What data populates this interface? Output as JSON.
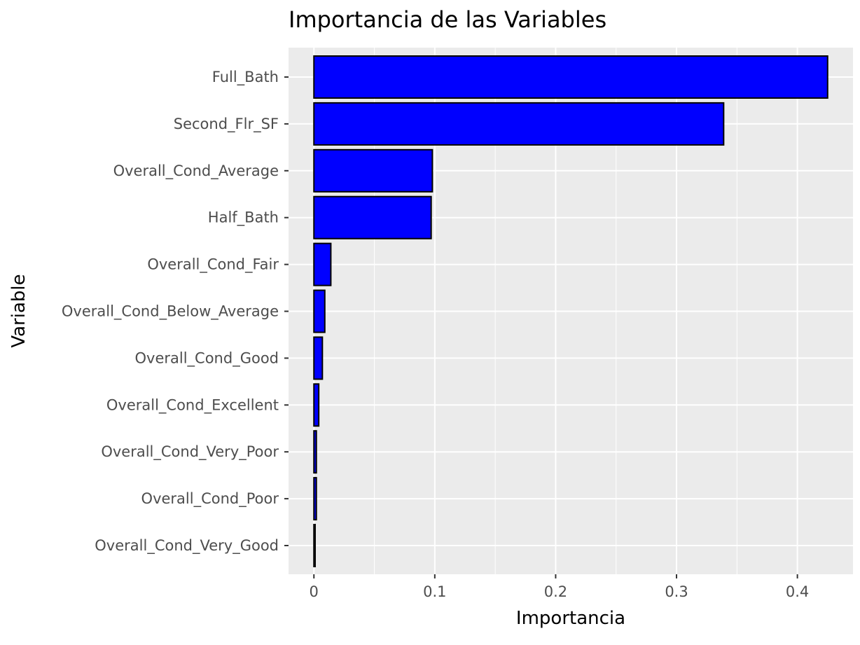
{
  "chart_data": {
    "type": "bar",
    "orientation": "horizontal",
    "title": "Importancia de las Variables",
    "xlabel": "Importancia",
    "ylabel": "Variable",
    "categories": [
      "Full_Bath",
      "Second_Flr_SF",
      "Overall_Cond_Average",
      "Half_Bath",
      "Overall_Cond_Fair",
      "Overall_Cond_Below_Average",
      "Overall_Cond_Good",
      "Overall_Cond_Excellent",
      "Overall_Cond_Very_Poor",
      "Overall_Cond_Poor",
      "Overall_Cond_Very_Good"
    ],
    "values": [
      0.425,
      0.339,
      0.098,
      0.097,
      0.014,
      0.009,
      0.007,
      0.004,
      0.002,
      0.002,
      0.001
    ],
    "xlim": [
      -0.021,
      0.446
    ],
    "xticks": [
      0,
      0.1,
      0.2,
      0.3,
      0.4
    ],
    "xtick_labels": [
      "0",
      "0.1",
      "0.2",
      "0.3",
      "0.4"
    ],
    "grid": true,
    "colors": {
      "bar_fill": "#0000ff",
      "bar_outline": "#000000",
      "panel_background": "#ebebeb",
      "grid": "#ffffff",
      "tick_label": "#4d4d4d"
    }
  }
}
